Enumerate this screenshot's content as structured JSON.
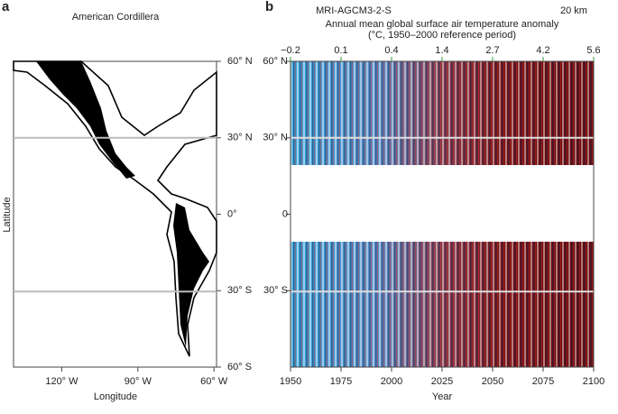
{
  "chart_data": [
    {
      "type": "map",
      "panel_label": "a",
      "title": "American Cordillera",
      "xlabel": "Longitude",
      "ylabel": "Latitude",
      "xlim": [
        -139,
        -59
      ],
      "xticks": [
        {
          "value": -120,
          "label": "120° W"
        },
        {
          "value": -90,
          "label": "90° W"
        },
        {
          "value": -60,
          "label": "60° W"
        }
      ],
      "ylim": [
        -60,
        60
      ],
      "yticks": [
        {
          "value": 60,
          "label": "60° N"
        },
        {
          "value": 30,
          "label": "30° N"
        },
        {
          "value": 0,
          "label": "0°"
        },
        {
          "value": -30,
          "label": "30° S"
        },
        {
          "value": -60,
          "label": "60° S"
        }
      ]
    },
    {
      "type": "heatmap",
      "panel_label": "b",
      "title": "MRI-AGCM3-2-S",
      "resolution": "20 km",
      "xlabel": "Year",
      "top_axis_label": [
        "Annual mean global surface air temperature anomaly",
        "(°C, 1950–2000 reference period)"
      ],
      "top_color": "#3a9a3a",
      "xlim": [
        1950,
        2100
      ],
      "xticks": [
        1950,
        1975,
        2000,
        2025,
        2050,
        2075,
        2100
      ],
      "top_ticks": [
        {
          "value": 1950,
          "label": "−0.2"
        },
        {
          "value": 1975,
          "label": "0.1"
        },
        {
          "value": 2000,
          "label": "0.4"
        },
        {
          "value": 2025,
          "label": "1.4"
        },
        {
          "value": 2050,
          "label": "2.7"
        },
        {
          "value": 2075,
          "label": "4.2"
        },
        {
          "value": 2100,
          "label": "5.6"
        }
      ],
      "ylim": [
        -60,
        60
      ],
      "yticks": [
        {
          "value": 60,
          "label": "60° N"
        },
        {
          "value": 30,
          "label": "30° N"
        },
        0,
        {
          "value": -30,
          "label": "30° S"
        }
      ]
    }
  ]
}
